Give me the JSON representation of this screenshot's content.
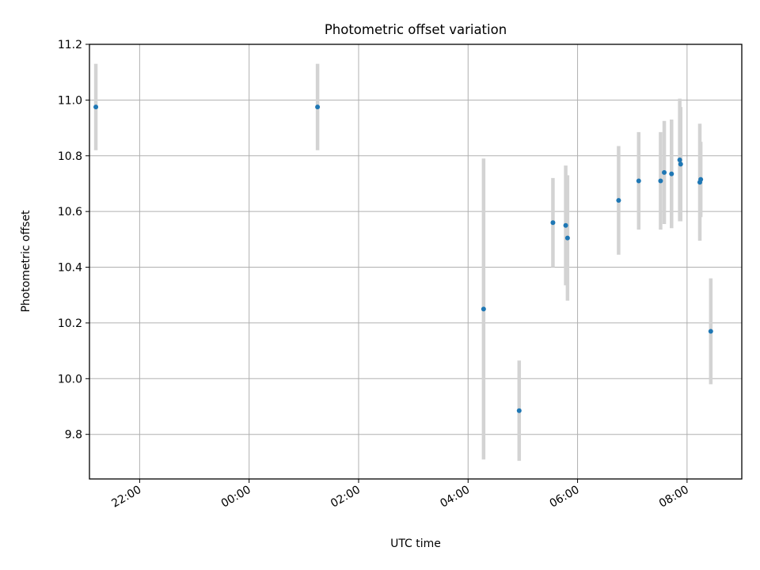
{
  "chart_data": {
    "type": "scatter",
    "title": "Photometric offset variation",
    "xlabel": "UTC time",
    "ylabel": "Photometric offset",
    "x_axis": "time-of-day (hours, 22:00 = 22.0; points after midnight > 24)",
    "xlim": [
      "21:05",
      "09:00"
    ],
    "ylim": [
      9.64,
      11.2
    ],
    "x_ticks": [
      "22:00",
      "00:00",
      "02:00",
      "04:00",
      "06:00",
      "08:00"
    ],
    "y_ticks": [
      "9.8",
      "10.0",
      "10.2",
      "10.4",
      "10.6",
      "10.8",
      "11.0",
      "11.2"
    ],
    "grid": true,
    "colors": {
      "points": "#1f77b4",
      "errorbars": "#d3d3d3",
      "grid": "#b0b0b0"
    },
    "points": [
      {
        "x": "21:12",
        "y": 10.975,
        "err": 0.155
      },
      {
        "x": "01:15",
        "y": 10.975,
        "err": 0.155
      },
      {
        "x": "04:17",
        "y": 10.25,
        "err": 0.54
      },
      {
        "x": "04:56",
        "y": 9.885,
        "err": 0.18
      },
      {
        "x": "05:33",
        "y": 10.56,
        "err": 0.16
      },
      {
        "x": "05:47",
        "y": 10.55,
        "err": 0.215
      },
      {
        "x": "05:49",
        "y": 10.505,
        "err": 0.225
      },
      {
        "x": "06:45",
        "y": 10.64,
        "err": 0.195
      },
      {
        "x": "07:07",
        "y": 10.71,
        "err": 0.175
      },
      {
        "x": "07:31",
        "y": 10.71,
        "err": 0.175
      },
      {
        "x": "07:35",
        "y": 10.74,
        "err": 0.185
      },
      {
        "x": "07:43",
        "y": 10.735,
        "err": 0.195
      },
      {
        "x": "07:52",
        "y": 10.785,
        "err": 0.22
      },
      {
        "x": "07:53",
        "y": 10.77,
        "err": 0.205
      },
      {
        "x": "08:14",
        "y": 10.705,
        "err": 0.21
      },
      {
        "x": "08:15",
        "y": 10.715,
        "err": 0.135
      },
      {
        "x": "08:26",
        "y": 10.17,
        "err": 0.19
      }
    ]
  }
}
